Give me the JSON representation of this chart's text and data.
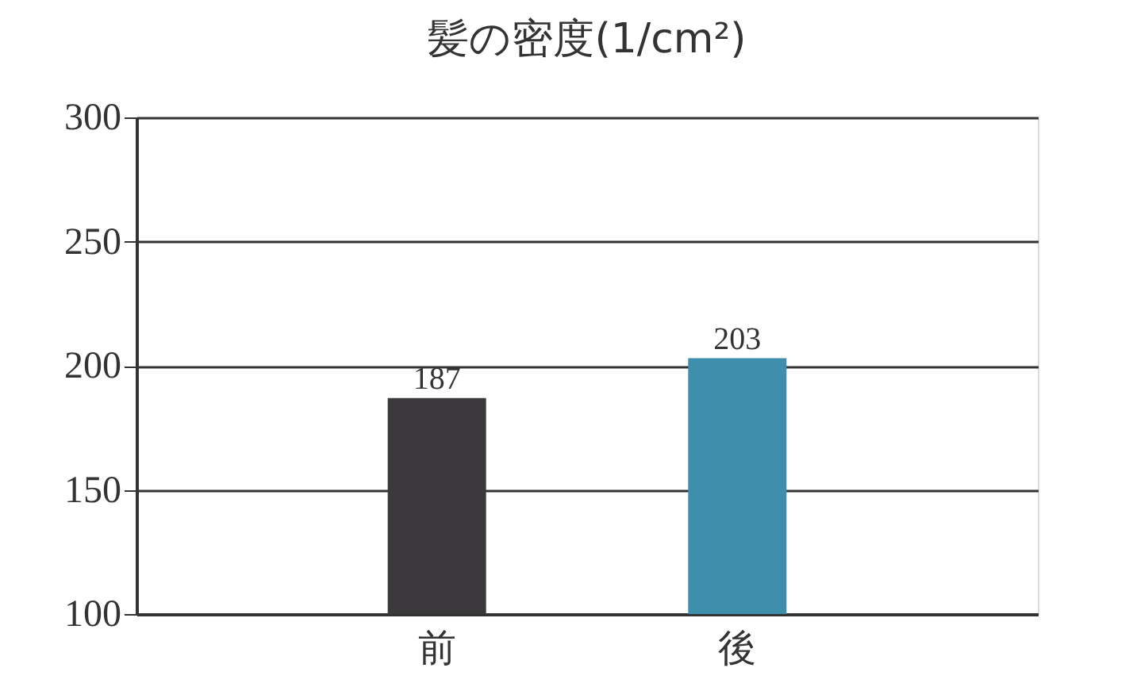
{
  "chart_data": {
    "type": "bar",
    "title": "髪の密度(1/cm²)",
    "categories": [
      "前",
      "後"
    ],
    "values": [
      187,
      203
    ],
    "colors": [
      "#3b393c",
      "#3e8fab"
    ],
    "ylim": [
      100,
      300
    ],
    "yticks": [
      100,
      150,
      200,
      250,
      300
    ],
    "grid": "y",
    "data_labels": true
  }
}
